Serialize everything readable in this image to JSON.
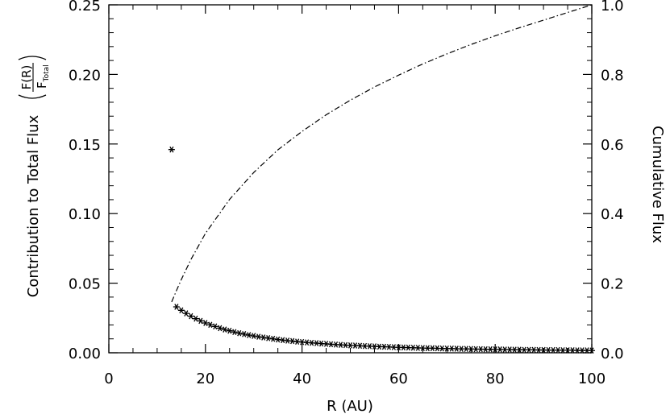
{
  "chart_data": {
    "type": "scatter",
    "title": "",
    "xlabel": "R (AU)",
    "ylabel_text": "Contribution to Total Flux",
    "ylabel_frac_num": "F(R)",
    "ylabel_frac_den_main": "F",
    "ylabel_frac_den_sub": "Total",
    "y2label": "Cumulative Flux",
    "xlim": [
      0,
      100
    ],
    "ylim": [
      0,
      0.25
    ],
    "y2lim": [
      0,
      1.0
    ],
    "grid": false,
    "x_ticks": [
      0,
      20,
      40,
      60,
      80,
      100
    ],
    "x_tick_labels": [
      "0",
      "20",
      "40",
      "60",
      "80",
      "100"
    ],
    "y_ticks": [
      0,
      0.05,
      0.1,
      0.15,
      0.2,
      0.25
    ],
    "y_tick_labels": [
      "0.00",
      "0.05",
      "0.10",
      "0.15",
      "0.20",
      "0.25"
    ],
    "y2_ticks": [
      0,
      0.2,
      0.4,
      0.6,
      0.8,
      1.0
    ],
    "y2_tick_labels": [
      "0.0",
      "0.2",
      "0.4",
      "0.6",
      "0.8",
      "1.0"
    ],
    "series": [
      {
        "marker": "asterisk",
        "axis": "left",
        "x": [
          13,
          14,
          15,
          16,
          17,
          18,
          19,
          20,
          21,
          22,
          23,
          24,
          25,
          26,
          27,
          28,
          29,
          30,
          31,
          32,
          33,
          34,
          35,
          36,
          37,
          38,
          39,
          40,
          41,
          42,
          43,
          44,
          45,
          46,
          47,
          48,
          49,
          50,
          51,
          52,
          53,
          54,
          55,
          56,
          57,
          58,
          59,
          60,
          61,
          62,
          63,
          64,
          65,
          66,
          67,
          68,
          69,
          70,
          71,
          72,
          73,
          74,
          75,
          76,
          77,
          78,
          79,
          80,
          81,
          82,
          83,
          84,
          85,
          86,
          87,
          88,
          89,
          90,
          91,
          92,
          93,
          94,
          95,
          96,
          97,
          98,
          99,
          100
        ],
        "y": [
          0.146,
          0.033,
          0.0305,
          0.0283,
          0.0263,
          0.0245,
          0.0229,
          0.0214,
          0.0201,
          0.0189,
          0.0177,
          0.0167,
          0.0158,
          0.0149,
          0.0141,
          0.0134,
          0.0127,
          0.0121,
          0.0115,
          0.011,
          0.0105,
          0.01,
          0.0095,
          0.0091,
          0.0087,
          0.0084,
          0.008,
          0.0077,
          0.0074,
          0.0071,
          0.0069,
          0.0066,
          0.0064,
          0.0061,
          0.0059,
          0.0057,
          0.0055,
          0.0053,
          0.0052,
          0.005,
          0.0048,
          0.0047,
          0.0046,
          0.0044,
          0.0043,
          0.0042,
          0.004,
          0.0039,
          0.0038,
          0.0037,
          0.0036,
          0.0035,
          0.0034,
          0.0033,
          0.0033,
          0.0032,
          0.0031,
          0.003,
          0.003,
          0.0029,
          0.0028,
          0.0028,
          0.0027,
          0.0026,
          0.0026,
          0.0025,
          0.0025,
          0.0024,
          0.0024,
          0.0023,
          0.0023,
          0.0022,
          0.0022,
          0.0021,
          0.0021,
          0.0021,
          0.002,
          0.002,
          0.0019,
          0.0019,
          0.0019,
          0.0018,
          0.0018,
          0.0018,
          0.0017,
          0.0017,
          0.0017,
          0.0016
        ]
      },
      {
        "line": "dash-dot",
        "axis": "right",
        "x": [
          13,
          14,
          15,
          17,
          20,
          25,
          30,
          35,
          40,
          45,
          50,
          55,
          60,
          65,
          70,
          75,
          80,
          85,
          90,
          95,
          100
        ],
        "y": [
          0.146,
          0.179,
          0.21,
          0.268,
          0.343,
          0.441,
          0.518,
          0.583,
          0.636,
          0.684,
          0.726,
          0.764,
          0.798,
          0.83,
          0.859,
          0.886,
          0.911,
          0.934,
          0.956,
          0.978,
          1.0
        ]
      }
    ]
  }
}
